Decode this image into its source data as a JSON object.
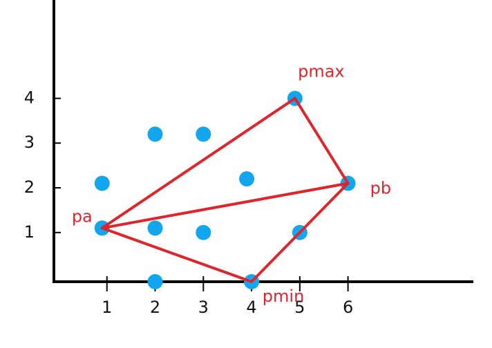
{
  "chart_data": {
    "type": "scatter",
    "x": [
      0.9,
      0.9,
      2.0,
      3.0,
      2.0,
      3.0,
      2.0,
      3.9,
      4.0,
      4.9,
      5.0,
      6.0
    ],
    "y": [
      2.1,
      1.1,
      3.2,
      3.2,
      1.1,
      1.0,
      -0.1,
      2.2,
      -0.1,
      4.0,
      1.0,
      2.1
    ],
    "point_labels": [
      null,
      "pa",
      null,
      null,
      null,
      null,
      null,
      null,
      "pmin",
      "pmax",
      null,
      "pb"
    ],
    "color": "#12a6ee",
    "edges": [
      [
        1,
        9
      ],
      [
        9,
        11
      ],
      [
        1,
        11
      ],
      [
        1,
        8
      ],
      [
        8,
        11
      ]
    ],
    "edge_color": "#e0242b",
    "xlim": [
      -0.1,
      8.6
    ],
    "ylim": [
      -0.1,
      6.2
    ],
    "xticks": [
      1,
      2,
      3,
      4,
      5,
      6
    ],
    "yticks": [
      1,
      2,
      3,
      4
    ]
  }
}
